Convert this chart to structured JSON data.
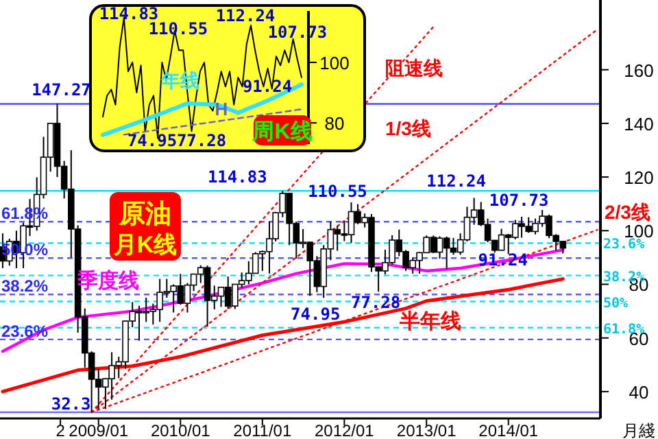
{
  "chart_data": [
    {
      "type": "candlestick",
      "xlabel": "月綫",
      "xlim": [
        "2007-10-20",
        "2015-02-15"
      ],
      "ylim": [
        30,
        186
      ],
      "yticks": [
        40,
        60,
        80,
        100,
        120,
        140,
        160
      ],
      "xticks": [
        {
          "value": "2008-07-15",
          "label": "2"
        },
        {
          "value": "2009-01",
          "label": "2009/01"
        },
        {
          "value": "2010-01",
          "label": "2010/01"
        },
        {
          "value": "2011-01",
          "label": "2011/01"
        },
        {
          "value": "2012-01",
          "label": "2012/01"
        },
        {
          "value": "2013-01",
          "label": "2013/01"
        },
        {
          "value": "2014-01",
          "label": "2014/01"
        }
      ],
      "x": [
        "2007-11",
        "2007-12",
        "2008-01",
        "2008-02",
        "2008-03",
        "2008-04",
        "2008-05",
        "2008-06",
        "2008-07",
        "2008-08",
        "2008-09",
        "2008-10",
        "2008-11",
        "2008-12",
        "2009-01",
        "2009-02",
        "2009-03",
        "2009-04",
        "2009-05",
        "2009-06",
        "2009-07",
        "2009-08",
        "2009-09",
        "2009-10",
        "2009-11",
        "2009-12",
        "2010-01",
        "2010-02",
        "2010-03",
        "2010-04",
        "2010-05",
        "2010-06",
        "2010-07",
        "2010-08",
        "2010-09",
        "2010-10",
        "2010-11",
        "2010-12",
        "2011-01",
        "2011-02",
        "2011-03",
        "2011-04",
        "2011-05",
        "2011-06",
        "2011-07",
        "2011-08",
        "2011-09",
        "2011-10",
        "2011-11",
        "2011-12",
        "2012-01",
        "2012-02",
        "2012-03",
        "2012-04",
        "2012-05",
        "2012-06",
        "2012-07",
        "2012-08",
        "2012-09",
        "2012-10",
        "2012-11",
        "2012-12",
        "2013-01",
        "2013-02",
        "2013-03",
        "2013-04",
        "2013-05",
        "2013-06",
        "2013-07",
        "2013-08",
        "2013-09",
        "2013-10",
        "2013-11",
        "2013-12",
        "2014-01",
        "2014-02",
        "2014-03",
        "2014-04",
        "2014-05",
        "2014-06",
        "2014-07",
        "2014-08",
        "2014-09"
      ],
      "ohlc": [
        [
          94,
          99,
          86,
          88.7
        ],
        [
          88.7,
          97,
          87,
          96
        ],
        [
          96,
          100,
          86,
          91.8
        ],
        [
          91.8,
          103,
          86,
          101.8
        ],
        [
          101.8,
          111.8,
          98,
          101.6
        ],
        [
          101.6,
          119.9,
          100,
          113.5
        ],
        [
          113.5,
          135,
          112,
          127.4
        ],
        [
          127.4,
          140,
          122,
          140
        ],
        [
          140,
          147.27,
          120,
          124
        ],
        [
          124,
          126,
          112,
          115.5
        ],
        [
          115.5,
          130,
          90,
          100.6
        ],
        [
          100.6,
          102,
          62,
          67.8
        ],
        [
          67.8,
          71,
          49,
          54.4
        ],
        [
          54.4,
          55,
          32.3,
          44.6
        ],
        [
          44.6,
          48.5,
          33.5,
          41.7
        ],
        [
          41.7,
          45,
          33.5,
          44.8
        ],
        [
          44.8,
          54.7,
          37,
          49.7
        ],
        [
          49.7,
          53,
          45,
          51.1
        ],
        [
          51.1,
          66.5,
          48.5,
          66.3
        ],
        [
          66.3,
          73.4,
          64,
          69.9
        ],
        [
          69.9,
          72,
          59,
          69.5
        ],
        [
          69.5,
          75,
          66,
          69.9
        ],
        [
          69.9,
          72.8,
          65,
          70.6
        ],
        [
          70.6,
          82,
          66,
          77
        ],
        [
          77,
          82,
          75,
          77.3
        ],
        [
          77.3,
          80,
          69.5,
          79.4
        ],
        [
          79.4,
          83.9,
          72.4,
          72.9
        ],
        [
          72.9,
          80.5,
          69.5,
          79.7
        ],
        [
          79.7,
          84,
          77.5,
          83.8
        ],
        [
          83.8,
          87.1,
          80.5,
          86.2
        ],
        [
          86.2,
          87,
          64.2,
          74
        ],
        [
          74,
          79.5,
          70.7,
          75.6
        ],
        [
          75.6,
          79,
          71.6,
          78.9
        ],
        [
          78.9,
          82.9,
          70.8,
          71.9
        ],
        [
          71.9,
          80,
          70.8,
          80
        ],
        [
          80,
          84.4,
          78.7,
          81.4
        ],
        [
          81.4,
          88.6,
          80,
          84.1
        ],
        [
          84.1,
          92,
          84,
          91.4
        ],
        [
          91.4,
          92.6,
          85,
          92.2
        ],
        [
          92.2,
          103.4,
          84,
          97
        ],
        [
          97,
          107,
          96,
          106.7
        ],
        [
          106.7,
          114.83,
          105,
          113.9
        ],
        [
          113.9,
          114,
          94.6,
          102.7
        ],
        [
          102.7,
          103.4,
          89.6,
          95.4
        ],
        [
          95.4,
          100.6,
          93.5,
          95.7
        ],
        [
          95.7,
          95.9,
          75.7,
          88.8
        ],
        [
          88.8,
          90.5,
          77.1,
          79.2
        ],
        [
          79.2,
          94.6,
          74.95,
          93.2
        ],
        [
          93.2,
          103.4,
          89,
          100.4
        ],
        [
          100.4,
          101.8,
          92.5,
          98.8
        ],
        [
          98.8,
          103.7,
          96.1,
          98.5
        ],
        [
          98.5,
          110.55,
          95.4,
          107.1
        ],
        [
          107.1,
          109.9,
          102.4,
          103
        ],
        [
          103,
          106.4,
          101.2,
          104.9
        ],
        [
          104.9,
          106.2,
          84.6,
          86.5
        ],
        [
          86.5,
          86.6,
          77.28,
          85
        ],
        [
          85,
          92.9,
          83.7,
          88.1
        ],
        [
          88.1,
          98.3,
          87.3,
          96.5
        ],
        [
          96.5,
          100.4,
          90.5,
          92.2
        ],
        [
          92.2,
          92.8,
          85,
          86.2
        ],
        [
          86.2,
          90,
          84,
          88.9
        ],
        [
          88.9,
          92,
          84,
          91.8
        ],
        [
          91.8,
          98.2,
          91.6,
          97.5
        ],
        [
          97.5,
          98.2,
          91.6,
          92
        ],
        [
          92,
          97.9,
          89.6,
          97.2
        ],
        [
          97.2,
          97.8,
          85.6,
          93.5
        ],
        [
          93.5,
          97.3,
          91,
          92
        ],
        [
          92,
          99,
          91,
          96.6
        ],
        [
          96.6,
          108.9,
          96,
          105
        ],
        [
          105,
          112.24,
          102.2,
          107.7
        ],
        [
          107.7,
          110.7,
          101.7,
          102.3
        ],
        [
          102.3,
          104.5,
          95.7,
          96.4
        ],
        [
          96.4,
          96.5,
          91.8,
          92.7
        ],
        [
          92.7,
          100.7,
          92.6,
          98.4
        ],
        [
          98.4,
          98.8,
          91.24,
          97.5
        ],
        [
          97.5,
          104,
          96.8,
          102.6
        ],
        [
          102.6,
          105.2,
          97.4,
          101.6
        ],
        [
          101.6,
          105,
          99.2,
          99.7
        ],
        [
          99.7,
          104.5,
          98.6,
          102.7
        ],
        [
          102.7,
          107.73,
          101.4,
          105.4
        ],
        [
          105.4,
          106,
          97.2,
          98.2
        ],
        [
          98.2,
          98.7,
          92.5,
          96
        ],
        [
          96,
          96,
          91.5,
          93.5
        ]
      ],
      "series": [
        {
          "name": "季度线",
          "type": "line",
          "color": "#ff00ff",
          "x": [
            "2007-11",
            "2008-05",
            "2008-10",
            "2009-06",
            "2010-04",
            "2011-01",
            "2011-06",
            "2012-01",
            "2012-07",
            "2013-01",
            "2013-06",
            "2014-01",
            "2014-09"
          ],
          "values": [
            55,
            63,
            67.7,
            70,
            75,
            80.5,
            84,
            87.7,
            87.5,
            85,
            86,
            89,
            92.8
          ]
        },
        {
          "name": "半年线",
          "type": "line",
          "color": "#ff0000",
          "x": [
            "2007-11",
            "2008-10",
            "2009-06",
            "2010-01",
            "2011-01",
            "2012-01",
            "2012-10",
            "2013-01",
            "2014-01",
            "2014-09"
          ],
          "values": [
            40,
            48,
            49.5,
            53,
            61,
            66,
            71,
            73.8,
            78,
            82
          ]
        },
        {
          "name": "阻速线",
          "type": "line",
          "color": "#ff0000",
          "line_style": "dotted",
          "x": [
            "2008-12",
            "2013-02"
          ],
          "values": [
            32.3,
            176
          ]
        },
        {
          "name": "1/3线",
          "type": "line",
          "color": "#ff0000",
          "line_style": "dotted",
          "x": [
            "2008-12",
            "2015-02"
          ],
          "values": [
            32.3,
            175
          ]
        },
        {
          "name": "2/3线",
          "type": "line",
          "color": "#ff0000",
          "line_style": "dotted",
          "x": [
            "2008-12",
            "2015-02"
          ],
          "values": [
            32.3,
            100.3
          ]
        }
      ],
      "ref_lines": [
        {
          "axis": "y",
          "value": 147.27,
          "color": "#4d4dff"
        },
        {
          "axis": "y",
          "value": 114.83,
          "color": "#00e5ff"
        },
        {
          "axis": "y",
          "value": 32.3,
          "color": "#6b6bff"
        },
        {
          "axis": "y",
          "value": 103.35,
          "color": "#5a5aff",
          "line_style": "dashed"
        },
        {
          "axis": "y",
          "value": 89.79,
          "color": "#5a5aff",
          "line_style": "dashed"
        },
        {
          "axis": "y",
          "value": 76.22,
          "color": "#5a5aff",
          "line_style": "dashed"
        },
        {
          "axis": "y",
          "value": 59.43,
          "color": "#5a5aff",
          "line_style": "dashed"
        },
        {
          "axis": "y",
          "value": 95.35,
          "color": "#00e5ff",
          "line_style": "dashed"
        },
        {
          "axis": "y",
          "value": 83.3,
          "color": "#00e5ff",
          "line_style": "dashed"
        },
        {
          "axis": "y",
          "value": 73.6,
          "color": "#00e5ff",
          "line_style": "dashed"
        },
        {
          "axis": "y",
          "value": 63.83,
          "color": "#00e5ff",
          "line_style": "dashed"
        }
      ],
      "annotations": [
        {
          "text": "147.27",
          "x": "2008-07",
          "y": 147.27
        },
        {
          "text": "114.83",
          "x": "2011-04",
          "y": 114.83
        },
        {
          "text": "110.55",
          "x": "2012-02",
          "y": 110.55
        },
        {
          "text": "112.24",
          "x": "2013-08",
          "y": 112.24
        },
        {
          "text": "107.73",
          "x": "2014-06",
          "y": 107.73
        },
        {
          "text": "74.95",
          "x": "2011-10",
          "y": 74.95
        },
        {
          "text": "77.28",
          "x": "2012-06",
          "y": 77.28
        },
        {
          "text": "91.24",
          "x": "2014-01",
          "y": 91.24
        },
        {
          "text": "32.3",
          "x": "2008-12",
          "y": 32.3
        },
        {
          "text": "61.8%",
          "y": 103.35
        },
        {
          "text": "50.0%",
          "y": 89.79
        },
        {
          "text": "38.2%",
          "y": 76.22
        },
        {
          "text": "23.6%",
          "y": 59.43
        },
        "23.6%",
        "38.2%",
        "50%",
        "61.8%",
        "原油",
        "月K线"
      ]
    },
    {
      "type": "line",
      "ylim": [
        73,
        117
      ],
      "yticks": [
        80,
        100
      ],
      "tick_labels": "y",
      "categories": [
        null,
        null,
        null,
        null,
        null,
        null,
        null,
        null,
        null,
        null,
        null,
        null,
        null,
        null,
        null,
        null,
        null,
        null,
        null,
        null,
        null,
        null,
        null,
        null,
        null,
        null,
        null,
        null,
        null,
        null,
        null,
        null,
        null,
        null,
        null,
        null,
        null,
        null,
        null,
        null,
        null,
        null,
        null,
        null,
        null,
        null,
        null,
        null
      ],
      "series": [
        {
          "color": "#000000",
          "values": [
            82,
            89,
            91,
            86,
            105,
            114.83,
            97,
            100,
            90,
            99,
            77,
            86,
            89,
            74.95,
            100,
            94,
            102,
            110.55,
            104,
            104,
            90,
            77.28,
            88,
            97,
            100,
            86,
            84,
            90,
            97,
            92,
            97,
            86,
            95,
            92,
            106,
            112.24,
            104,
            97,
            92,
            98,
            91.24,
            102,
            99,
            104,
            100,
            107.73,
            101,
            95
          ]
        },
        {
          "name": "年线",
          "color": "#33e0ff",
          "values": [
            76,
            76.5,
            77,
            77.5,
            78,
            78.5,
            79,
            79.5,
            80,
            80.5,
            81.1,
            81.6,
            82.1,
            82.7,
            83.2,
            83.7,
            84.3,
            84.8,
            85.3,
            85.9,
            86.4,
            86.3,
            86.3,
            86.2,
            86.2,
            86.1,
            86.1,
            86,
            85.5,
            85,
            84.4,
            83.9,
            83.3,
            83.9,
            84.5,
            85.1,
            85.6,
            86.2,
            86.8,
            87.4,
            88,
            88.7,
            89.3,
            90,
            90.7,
            91.3,
            92,
            92.7
          ]
        },
        {
          "name": "H",
          "color": "#6060e0",
          "line_style": "dashed",
          "values": [
            null,
            null,
            null,
            null,
            null,
            76.1,
            76.3,
            76.5,
            76.7,
            76.9,
            77.1,
            77.3,
            77.5,
            77.7,
            77.9,
            78.1,
            78.3,
            78.5,
            78.7,
            78.9,
            79.1,
            79.3,
            79.5,
            79.7,
            79.9,
            80.1,
            80.3,
            80.5,
            80.7,
            80.9,
            81.1,
            81.3,
            81.5,
            81.7,
            81.9,
            82.1,
            82.3,
            82.5,
            82.7,
            82.9,
            83.1,
            83.3,
            83.5,
            83.7,
            83.9,
            84.1,
            84.3,
            84.5
          ]
        }
      ],
      "annotations": [
        {
          "text": "114.83",
          "y": 114.83
        },
        {
          "text": "110.55",
          "y": 110.55
        },
        {
          "text": "112.24",
          "y": 112.24
        },
        {
          "text": "107.73",
          "y": 107.73
        },
        {
          "text": "74.95",
          "y": 74.95
        },
        {
          "text": "77.28",
          "y": 77.28
        },
        {
          "text": "91.24",
          "y": 91.24
        },
        "周K线"
      ]
    }
  ]
}
